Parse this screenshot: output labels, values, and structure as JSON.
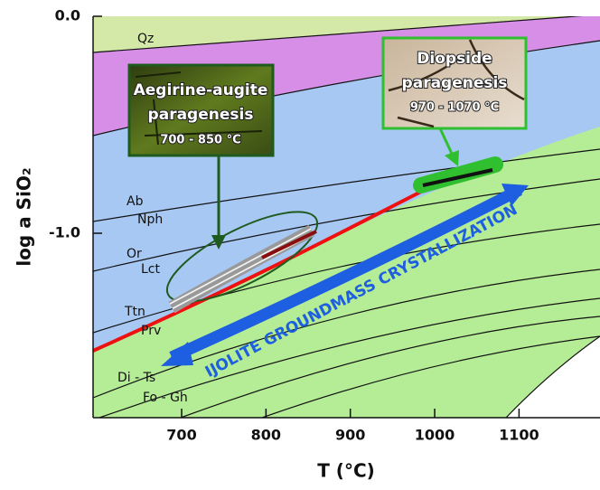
{
  "chart_data": {
    "type": "phase-diagram",
    "xlabel": "T (°C)",
    "ylabel": "log a SiO₂",
    "xlim": [
      595,
      1196
    ],
    "ylim": [
      -1.85,
      0
    ],
    "xticks": [
      700,
      800,
      900,
      1000,
      1100
    ],
    "yticks": [
      {
        "value": 0,
        "label": "0.0"
      },
      {
        "value": -1,
        "label": "-1.0"
      }
    ],
    "field_labels": [
      "Qz",
      "Ab",
      "Nph",
      "Or",
      "Lct",
      "Ttn",
      "Prv",
      "Di - Ts",
      "Fo - Gh"
    ],
    "arrow_label": "IJOLITE GROUNDMASS CRYSTALLIZATION",
    "insets": [
      {
        "title_lines": [
          "Aegirine-augite",
          "paragenesis"
        ],
        "range": "700 - 850 °C"
      },
      {
        "title_lines": [
          "Diopside",
          "paragenesis"
        ],
        "range": "970 - 1070 °C"
      }
    ]
  }
}
